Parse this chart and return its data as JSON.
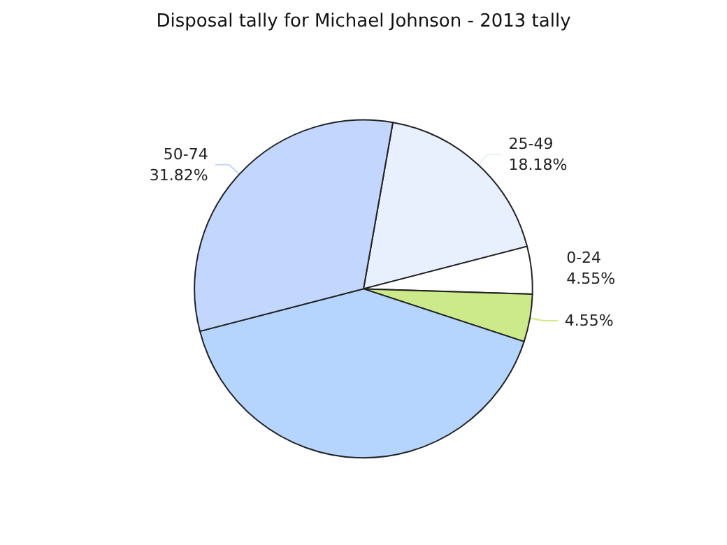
{
  "chart_data": {
    "type": "pie",
    "title": "Disposal tally for Michael Johnson - 2013 tally",
    "categories": [
      "25-49",
      "0-24",
      null,
      null,
      "50-74"
    ],
    "values": [
      18.18,
      4.55,
      4.55,
      40.91,
      31.82
    ],
    "value_labels": [
      "18.18%",
      "4.55%",
      "4.55%",
      null,
      "31.82%"
    ],
    "colors": [
      "#e8f0fe",
      "#ffffff",
      "#cdea8a",
      "#b5d5ff",
      "#c2d6fe"
    ],
    "legend": false
  }
}
